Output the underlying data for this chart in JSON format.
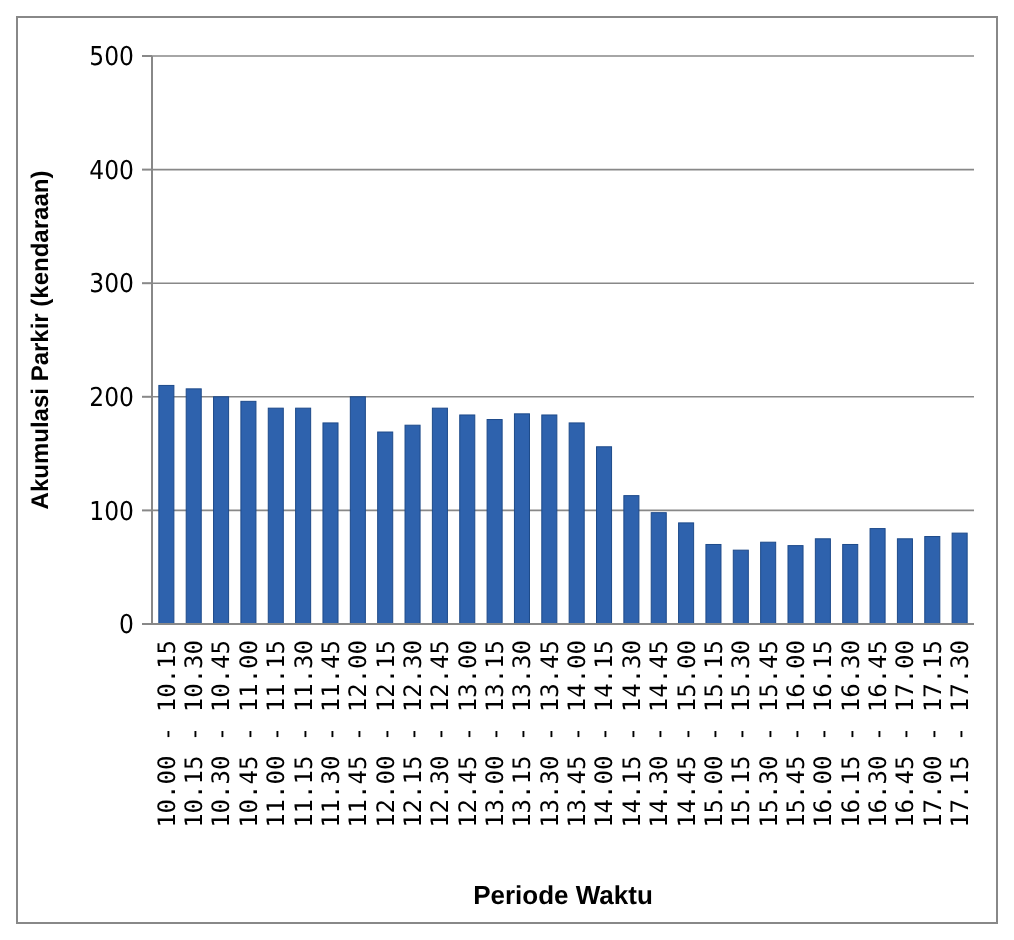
{
  "chart_data": {
    "type": "bar",
    "xlabel": "Periode Waktu",
    "ylabel": "Akumulasi Parkir (kendaraan)",
    "categories": [
      "10.00 - 10.15",
      "10.15 - 10.30",
      "10.30 - 10.45",
      "10.45 - 11.00",
      "11.00 - 11.15",
      "11.15 - 11.30",
      "11.30 - 11.45",
      "11.45 - 12.00",
      "12.00 - 12.15",
      "12.15 - 12.30",
      "12.30 - 12.45",
      "12.45 - 13.00",
      "13.00 - 13.15",
      "13.15 - 13.30",
      "13.30 - 13.45",
      "13.45 - 14.00",
      "14.00 - 14.15",
      "14.15 - 14.30",
      "14.30 - 14.45",
      "14.45 - 15.00",
      "15.00 - 15.15",
      "15.15 - 15.30",
      "15.30 - 15.45",
      "15.45 - 16.00",
      "16.00 - 16.15",
      "16.15 - 16.30",
      "16.30 - 16.45",
      "16.45 - 17.00",
      "17.00 - 17.15",
      "17.15 - 17.30"
    ],
    "values": [
      210,
      207,
      200,
      196,
      190,
      190,
      177,
      200,
      169,
      175,
      190,
      184,
      180,
      185,
      184,
      177,
      156,
      113,
      98,
      89,
      70,
      65,
      72,
      69,
      75,
      70,
      84,
      75,
      77,
      80
    ],
    "color": "#2e62ad",
    "ylim": [
      0,
      500
    ],
    "yticks": [
      0,
      100,
      200,
      300,
      400,
      500
    ],
    "grid": "y"
  }
}
